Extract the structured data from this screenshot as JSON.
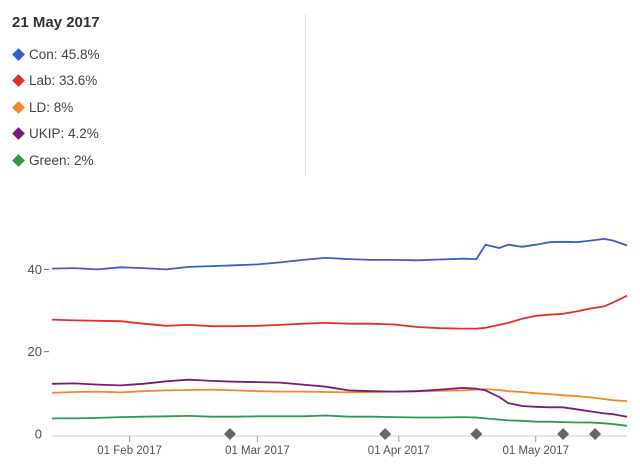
{
  "tooltip": {
    "date": "21 May 2017",
    "items": [
      {
        "label": "Con: 45.8%",
        "color": "#3a5fcd"
      },
      {
        "label": "Lab: 33.6%",
        "color": "#e0322c"
      },
      {
        "label": "LD: 8%",
        "color": "#f5891f"
      },
      {
        "label": "UKIP: 4.2%",
        "color": "#7a1b7a"
      },
      {
        "label": "Green: 2%",
        "color": "#2e9a4a"
      }
    ]
  },
  "chart_data": {
    "type": "line",
    "x_dates": [
      "2017-01-15",
      "2017-01-20",
      "2017-01-25",
      "2017-01-30",
      "2017-02-04",
      "2017-02-09",
      "2017-02-14",
      "2017-02-19",
      "2017-02-24",
      "2017-03-01",
      "2017-03-06",
      "2017-03-11",
      "2017-03-16",
      "2017-03-21",
      "2017-03-26",
      "2017-03-31",
      "2017-04-05",
      "2017-04-10",
      "2017-04-15",
      "2017-04-18",
      "2017-04-20",
      "2017-04-23",
      "2017-04-25",
      "2017-04-28",
      "2017-05-01",
      "2017-05-04",
      "2017-05-07",
      "2017-05-10",
      "2017-05-13",
      "2017-05-16",
      "2017-05-18",
      "2017-05-21"
    ],
    "series": [
      {
        "name": "Con",
        "color": "#3a5fcd",
        "values": [
          40.2,
          40.3,
          40.0,
          40.5,
          40.3,
          40.0,
          40.6,
          40.8,
          41.0,
          41.2,
          41.7,
          42.3,
          42.8,
          42.5,
          42.3,
          42.3,
          42.2,
          42.4,
          42.6,
          42.5,
          46.0,
          45.2,
          46.0,
          45.5,
          46.0,
          46.6,
          46.7,
          46.6,
          47.0,
          47.4,
          47.0,
          45.8
        ]
      },
      {
        "name": "Lab",
        "color": "#e0322c",
        "values": [
          27.8,
          27.6,
          27.5,
          27.4,
          26.8,
          26.3,
          26.5,
          26.2,
          26.2,
          26.3,
          26.5,
          26.8,
          27.0,
          26.8,
          26.8,
          26.6,
          26.0,
          25.7,
          25.6,
          25.6,
          25.8,
          26.5,
          27.0,
          28.0,
          28.7,
          29.0,
          29.2,
          29.8,
          30.5,
          31.0,
          32.0,
          33.6
        ]
      },
      {
        "name": "LD",
        "color": "#f5891f",
        "values": [
          10.0,
          10.2,
          10.3,
          10.1,
          10.4,
          10.6,
          10.7,
          10.8,
          10.6,
          10.4,
          10.3,
          10.3,
          10.2,
          10.1,
          10.2,
          10.3,
          10.4,
          10.5,
          10.6,
          10.8,
          10.9,
          10.7,
          10.4,
          10.2,
          9.9,
          9.7,
          9.4,
          9.2,
          8.9,
          8.5,
          8.2,
          8.0
        ]
      },
      {
        "name": "UKIP",
        "color": "#7a1b7a",
        "values": [
          12.2,
          12.3,
          12.0,
          11.8,
          12.2,
          12.8,
          13.2,
          12.9,
          12.7,
          12.6,
          12.5,
          12.0,
          11.5,
          10.6,
          10.4,
          10.3,
          10.4,
          10.8,
          11.2,
          11.0,
          10.6,
          9.0,
          7.5,
          6.8,
          6.6,
          6.5,
          6.5,
          6.0,
          5.5,
          5.0,
          4.8,
          4.2
        ]
      },
      {
        "name": "Green",
        "color": "#2e9a4a",
        "values": [
          3.8,
          3.8,
          3.9,
          4.1,
          4.2,
          4.3,
          4.4,
          4.2,
          4.2,
          4.3,
          4.3,
          4.3,
          4.5,
          4.2,
          4.2,
          4.1,
          4.0,
          4.0,
          4.1,
          4.0,
          3.8,
          3.5,
          3.3,
          3.2,
          3.0,
          3.0,
          2.9,
          2.8,
          2.8,
          2.6,
          2.4,
          2.0
        ]
      }
    ],
    "x_ticks": [
      {
        "label": "01 Feb 2017",
        "date": "2017-02-01"
      },
      {
        "label": "01 Mar 2017",
        "date": "2017-03-01"
      },
      {
        "label": "01 Apr 2017",
        "date": "2017-04-01"
      },
      {
        "label": "01 May 2017",
        "date": "2017-05-01"
      }
    ],
    "y_ticks": [
      0,
      20,
      40
    ],
    "ylim": [
      0,
      52
    ],
    "xlim": [
      "2017-01-15",
      "2017-05-21"
    ],
    "event_marker_dates": [
      "2017-02-23",
      "2017-03-29",
      "2017-04-18",
      "2017-05-07",
      "2017-05-14"
    ],
    "grid": false,
    "title": "",
    "xlabel": "",
    "ylabel": ""
  }
}
